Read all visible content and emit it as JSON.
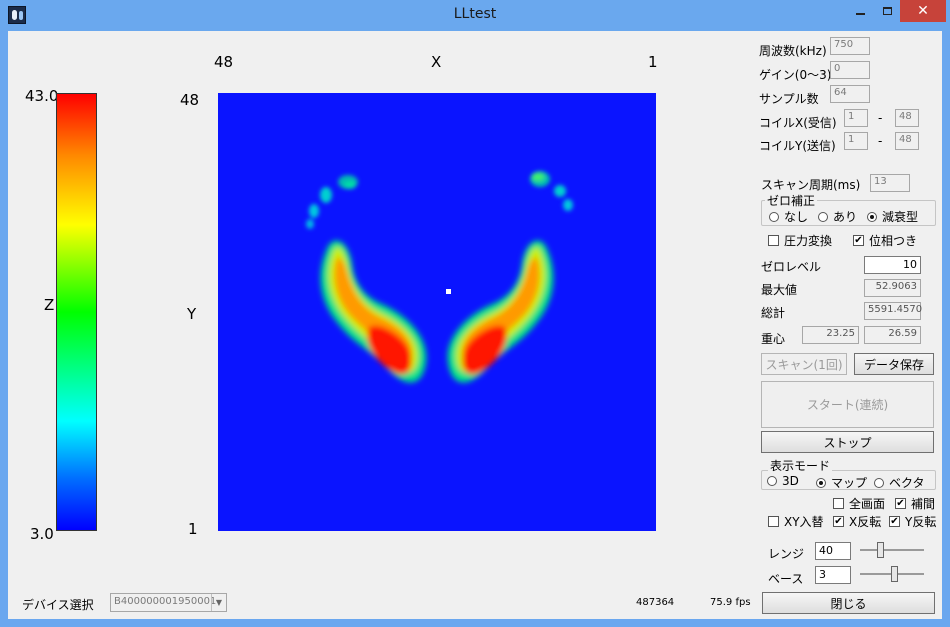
{
  "window": {
    "title": "LLtest"
  },
  "colorbar": {
    "max": "43.0",
    "min": "3.0",
    "axis": "Z"
  },
  "plot": {
    "x_label": "X",
    "y_label": "Y",
    "x_left": "48",
    "x_right": "1",
    "y_top": "48",
    "y_bottom": "1",
    "grid_size": 48,
    "background_color": "#0a14ff"
  },
  "params": {
    "frequency": {
      "label": "周波数(kHz)",
      "value": "750"
    },
    "gain": {
      "label": "ゲイン(0〜3)",
      "value": "0"
    },
    "samples": {
      "label": "サンプル数",
      "value": "64"
    },
    "coil_x": {
      "label": "コイルX(受信)",
      "from": "1",
      "sep": "-",
      "to": "48"
    },
    "coil_y": {
      "label": "コイルY(送信)",
      "from": "1",
      "sep": "-",
      "to": "48"
    },
    "scan_period": {
      "label": "スキャン周期(ms)",
      "value": "13"
    }
  },
  "zero_correction": {
    "title": "ゼロ補正",
    "options": [
      "なし",
      "あり",
      "減衰型"
    ],
    "selected": "減衰型"
  },
  "options": {
    "pressure_convert": {
      "label": "圧力変換",
      "checked": false
    },
    "with_phase": {
      "label": "位相つき",
      "checked": true
    }
  },
  "stats": {
    "zero_level": {
      "label": "ゼロレベル",
      "value": "10"
    },
    "max_value": {
      "label": "最大値",
      "value": "52.9063"
    },
    "total": {
      "label": "総計",
      "value": "5591.4570"
    },
    "centroid": {
      "label": "重心",
      "x": "23.25",
      "y": "26.59"
    }
  },
  "buttons": {
    "scan_once": "スキャン(1回)",
    "save_data": "データ保存",
    "start": "スタート(連続)",
    "stop": "ストップ",
    "close": "閉じる"
  },
  "display_mode": {
    "title": "表示モード",
    "options": [
      "3D",
      "マップ",
      "ベクタ"
    ],
    "selected": "マップ"
  },
  "view_options": {
    "full_screen": {
      "label": "全画面",
      "checked": false
    },
    "interpolate": {
      "label": "補間",
      "checked": true
    },
    "xy_swap": {
      "label": "XY入替",
      "checked": false
    },
    "x_flip": {
      "label": "X反転",
      "checked": true
    },
    "y_flip": {
      "label": "Y反転",
      "checked": true
    }
  },
  "range": {
    "label": "レンジ",
    "value": "40",
    "slider_fraction": 0.3
  },
  "base": {
    "label": "ベース",
    "value": "3",
    "slider_fraction": 0.55
  },
  "device": {
    "label": "デバイス選択",
    "value": "B400000001950001"
  },
  "status": {
    "counter": "487364",
    "fps": "75.9 fps"
  }
}
